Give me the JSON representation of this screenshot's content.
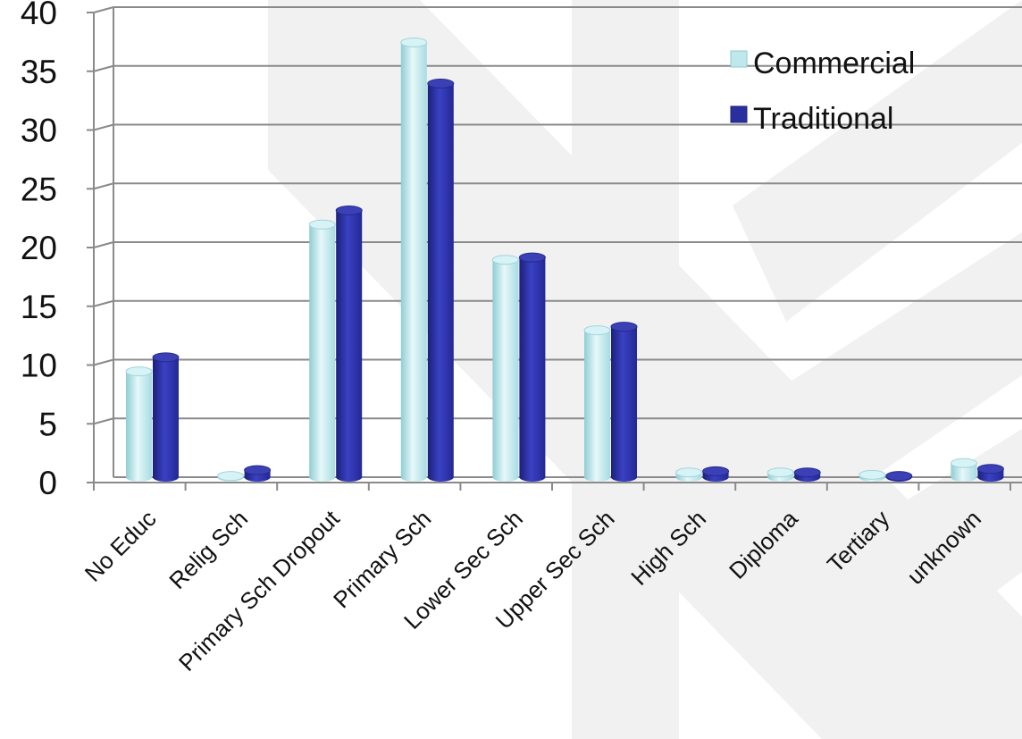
{
  "chart_data": {
    "type": "bar",
    "title": "",
    "xlabel": "",
    "ylabel": "",
    "ylim": [
      0,
      40
    ],
    "yticks": [
      0,
      5,
      10,
      15,
      20,
      25,
      30,
      35,
      40
    ],
    "grid": true,
    "legend_position": "top-right",
    "categories": [
      "No Educ",
      "Relig Sch",
      "Primary Sch Dropout",
      "Primary Sch",
      "Lower Sec Sch",
      "Upper Sec Sch",
      "High Sch",
      "Diploma",
      "Tertiary",
      "unknown"
    ],
    "series": [
      {
        "name": "Commercial",
        "color": "#bfe8ec",
        "values": [
          9.0,
          0.1,
          21.5,
          37.0,
          18.5,
          12.5,
          0.4,
          0.4,
          0.2,
          1.2
        ]
      },
      {
        "name": "Traditional",
        "color": "#2a2f9e",
        "values": [
          10.2,
          0.6,
          22.7,
          33.5,
          18.7,
          12.8,
          0.5,
          0.4,
          0.1,
          0.7
        ]
      }
    ]
  }
}
